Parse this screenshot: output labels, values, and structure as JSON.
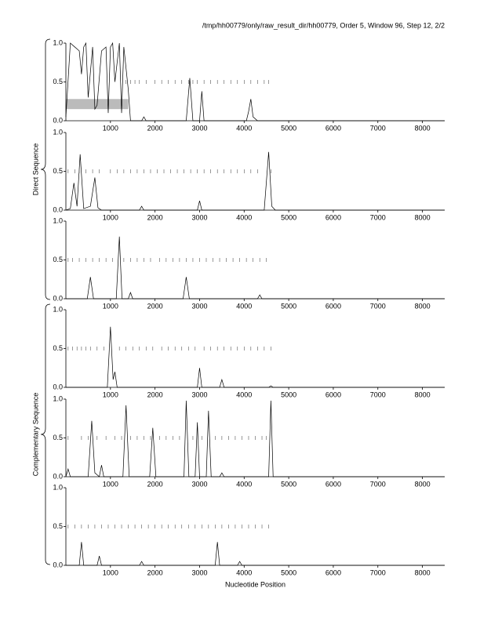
{
  "header": {
    "title": "/tmp/hh00779/only/raw_result_dir/hh00779, Order 5, Window 96, Step 12, 2/2"
  },
  "groups": [
    {
      "label": "Direct Sequence"
    },
    {
      "label": "Complementary Sequence"
    }
  ],
  "chart_data": [
    {
      "type": "line",
      "color": "#000000",
      "x": [
        0,
        100,
        200,
        300,
        350,
        400,
        450,
        500,
        600,
        650,
        700,
        800,
        900,
        950,
        1000,
        1050,
        1100,
        1200,
        1250,
        1300,
        1400,
        1450,
        1700,
        1750,
        1800,
        2700,
        2780,
        2850,
        3000,
        3050,
        3100,
        3200,
        4050,
        4100,
        4150,
        4200,
        4300,
        8500
      ],
      "values": [
        0.05,
        1.0,
        0.95,
        0.9,
        0.6,
        0.95,
        1.0,
        0.3,
        0.95,
        0.15,
        0.2,
        0.9,
        0.95,
        0.1,
        0.95,
        1.0,
        0.5,
        1.0,
        0.1,
        0.95,
        0.4,
        0,
        0,
        0.05,
        0,
        0,
        0.55,
        0,
        0,
        0.38,
        0,
        0,
        0,
        0.12,
        0.28,
        0.05,
        0,
        0
      ],
      "rug_level": 0.5,
      "rug_x": [
        1350,
        1450,
        1550,
        1650,
        1800,
        2000,
        2150,
        2300,
        2450,
        2600,
        2750,
        2850,
        2950,
        3100,
        3250,
        3400,
        3550,
        3700,
        3850,
        4000,
        4150,
        4300,
        4450,
        4550
      ],
      "highlight": {
        "xlim": [
          0,
          1400
        ],
        "ylim": [
          0.15,
          0.28
        ]
      },
      "xlim": [
        0,
        8500
      ],
      "ylim": [
        0,
        1
      ],
      "xticks": [
        1000,
        2000,
        3000,
        4000,
        5000,
        6000,
        7000,
        8000
      ],
      "yticks": [
        {
          "value": 0,
          "label": "0.0"
        },
        {
          "value": 0.5,
          "label": "0.5"
        },
        {
          "value": 1,
          "label": "1.0"
        }
      ]
    },
    {
      "type": "line",
      "color": "#000000",
      "x": [
        0,
        100,
        180,
        250,
        320,
        400,
        550,
        650,
        720,
        800,
        1650,
        1700,
        1750,
        2950,
        3000,
        3050,
        4450,
        4550,
        4620,
        4700,
        8500
      ],
      "values": [
        0,
        0.02,
        0.35,
        0.05,
        0.72,
        0.02,
        0.05,
        0.42,
        0.03,
        0,
        0,
        0.05,
        0,
        0,
        0.12,
        0,
        0,
        0.75,
        0.05,
        0,
        0
      ],
      "rug_level": 0.5,
      "rug_x": [
        50,
        200,
        300,
        450,
        600,
        750,
        1000,
        1150,
        1300,
        1450,
        1600,
        1750,
        1900,
        2050,
        2200,
        2350,
        2500,
        2650,
        2800,
        2950,
        3100,
        3250,
        3400,
        3550,
        3700,
        3850,
        4000,
        4150,
        4300,
        4600
      ],
      "xlim": [
        0,
        8500
      ],
      "ylim": [
        0,
        1
      ],
      "xticks": [
        1000,
        2000,
        3000,
        4000,
        5000,
        6000,
        7000,
        8000
      ],
      "yticks": [
        {
          "value": 0,
          "label": "0.0"
        },
        {
          "value": 0.5,
          "label": "0.5"
        },
        {
          "value": 1,
          "label": "1.0"
        }
      ]
    },
    {
      "type": "line",
      "color": "#000000",
      "x": [
        0,
        480,
        550,
        620,
        1130,
        1200,
        1260,
        1400,
        1450,
        1500,
        2630,
        2700,
        2770,
        4300,
        4350,
        4400,
        8500
      ],
      "values": [
        0,
        0,
        0.28,
        0,
        0,
        0.8,
        0,
        0,
        0.08,
        0,
        0,
        0.28,
        0,
        0,
        0.05,
        0,
        0
      ],
      "rug_level": 0.5,
      "rug_x": [
        50,
        150,
        300,
        450,
        600,
        750,
        900,
        1050,
        1300,
        1450,
        1600,
        1750,
        1900,
        2100,
        2250,
        2400,
        2550,
        2700,
        2850,
        3000,
        3150,
        3300,
        3450,
        3600,
        3750,
        3900,
        4050,
        4200,
        4350,
        4500
      ],
      "xlim": [
        0,
        8500
      ],
      "ylim": [
        0,
        1
      ],
      "xticks": [
        1000,
        2000,
        3000,
        4000,
        5000,
        6000,
        7000,
        8000
      ],
      "yticks": [
        {
          "value": 0,
          "label": "0.0"
        },
        {
          "value": 0.5,
          "label": "0.5"
        },
        {
          "value": 1,
          "label": "1.0"
        }
      ]
    },
    {
      "type": "line",
      "color": "#000000",
      "x": [
        0,
        930,
        1000,
        1060,
        1100,
        1150,
        2950,
        3000,
        3050,
        3450,
        3500,
        3550,
        4550,
        4600,
        4650,
        8500
      ],
      "values": [
        0,
        0,
        0.78,
        0.1,
        0.2,
        0,
        0,
        0.25,
        0,
        0,
        0.1,
        0,
        0,
        0.02,
        0,
        0
      ],
      "rug_level": 0.5,
      "rug_x": [
        50,
        150,
        250,
        350,
        450,
        550,
        700,
        850,
        1200,
        1350,
        1500,
        1650,
        1800,
        1950,
        2150,
        2300,
        2450,
        2600,
        2750,
        2900,
        3100,
        3250,
        3400,
        3550,
        3700,
        3850,
        4000,
        4150,
        4300,
        4450,
        4600
      ],
      "xlim": [
        0,
        8500
      ],
      "ylim": [
        0,
        1
      ],
      "xticks": [
        1000,
        2000,
        3000,
        4000,
        5000,
        6000,
        7000,
        8000
      ],
      "yticks": [
        {
          "value": 0,
          "label": "0.0"
        },
        {
          "value": 0.5,
          "label": "0.5"
        },
        {
          "value": 1,
          "label": "1.0"
        }
      ]
    },
    {
      "type": "line",
      "color": "#000000",
      "x": [
        0,
        50,
        100,
        500,
        580,
        650,
        750,
        800,
        850,
        1280,
        1350,
        1420,
        1880,
        1950,
        2020,
        2650,
        2700,
        2760,
        2900,
        2950,
        3000,
        3150,
        3200,
        3260,
        3450,
        3500,
        3550,
        4550,
        4600,
        4650,
        8500
      ],
      "values": [
        0,
        0.1,
        0,
        0,
        0.72,
        0.05,
        0,
        0.15,
        0,
        0,
        0.92,
        0,
        0,
        0.63,
        0,
        0,
        0.98,
        0,
        0,
        0.7,
        0,
        0,
        0.85,
        0,
        0,
        0.05,
        0,
        0,
        0.98,
        0,
        0
      ],
      "rug_level": 0.5,
      "rug_x": [
        50,
        350,
        500,
        700,
        900,
        1100,
        1250,
        1450,
        1600,
        1750,
        1900,
        2100,
        2250,
        2400,
        2550,
        2850,
        3050,
        3350,
        3500,
        3650,
        3800,
        3950,
        4100,
        4250,
        4400,
        4500
      ],
      "xlim": [
        0,
        8500
      ],
      "ylim": [
        0,
        1
      ],
      "xticks": [
        1000,
        2000,
        3000,
        4000,
        5000,
        6000,
        7000,
        8000
      ],
      "yticks": [
        {
          "value": 0,
          "label": "0.0"
        },
        {
          "value": 0.5,
          "label": "0.5"
        },
        {
          "value": 1,
          "label": "1.0"
        }
      ]
    },
    {
      "type": "line",
      "color": "#000000",
      "x": [
        0,
        300,
        350,
        400,
        700,
        750,
        800,
        1650,
        1700,
        1750,
        3350,
        3400,
        3450,
        3850,
        3900,
        3950,
        8500
      ],
      "values": [
        0,
        0,
        0.3,
        0,
        0,
        0.12,
        0,
        0,
        0.05,
        0,
        0,
        0.3,
        0,
        0,
        0.05,
        0,
        0
      ],
      "rug_level": 0.5,
      "rug_x": [
        50,
        200,
        350,
        500,
        650,
        800,
        950,
        1100,
        1250,
        1400,
        1550,
        1700,
        1850,
        2000,
        2150,
        2300,
        2450,
        2600,
        2750,
        2900,
        3050,
        3200,
        3350,
        3500,
        3650,
        3800,
        3950,
        4100,
        4250,
        4400,
        4550
      ],
      "xlabel": "Nucleotide Position",
      "xlim": [
        0,
        8500
      ],
      "ylim": [
        0,
        1
      ],
      "xticks": [
        1000,
        2000,
        3000,
        4000,
        5000,
        6000,
        7000,
        8000
      ],
      "yticks": [
        {
          "value": 0,
          "label": "0.0"
        },
        {
          "value": 0.5,
          "label": "0.5"
        },
        {
          "value": 1,
          "label": "1.0"
        }
      ]
    }
  ]
}
